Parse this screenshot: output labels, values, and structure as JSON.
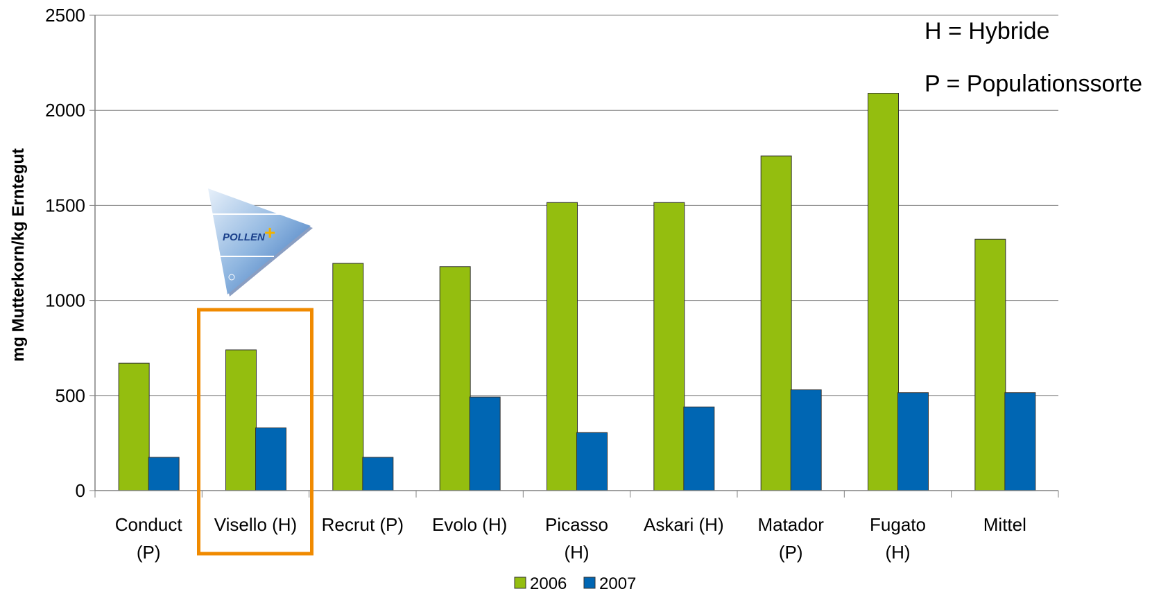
{
  "chart_data": {
    "type": "bar",
    "categories": [
      [
        "Conduct",
        "(P)"
      ],
      [
        "Visello (H)"
      ],
      [
        "Recrut (P)"
      ],
      [
        "Evolo (H)"
      ],
      [
        "Picasso",
        "(H)"
      ],
      [
        "Askari (H)"
      ],
      [
        "Matador",
        "(P)"
      ],
      [
        "Fugato",
        "(H)"
      ],
      [
        "Mittel"
      ]
    ],
    "series": [
      {
        "name": "2006",
        "color": "#94be0f",
        "values": [
          670,
          740,
          1195,
          1178,
          1515,
          1515,
          1760,
          2090,
          1322
        ]
      },
      {
        "name": "2007",
        "color": "#0066b3",
        "values": [
          175,
          330,
          175,
          492,
          305,
          440,
          530,
          515,
          515
        ]
      }
    ],
    "ylabel": "mg Mutterkorn/kg Erntegut",
    "ylim": [
      0,
      2500
    ],
    "yticks": [
      0,
      500,
      1000,
      1500,
      2000,
      2500
    ],
    "grid": true,
    "legend": "bottom",
    "highlight_category": 1,
    "highlight_color": "#f08a00",
    "annotations": [
      "H = Hybride",
      "P = Populationssorte"
    ],
    "logo_text": "POLLEN"
  }
}
